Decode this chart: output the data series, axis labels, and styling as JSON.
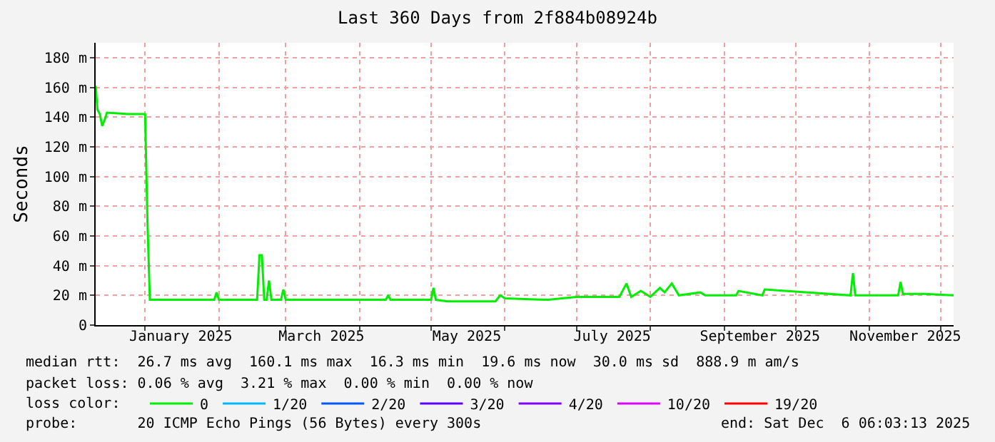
{
  "chart_data": {
    "type": "line",
    "title": "Last 360 Days from 2f884b08924b",
    "ylabel": "Seconds",
    "x": [
      "2024-12-11T06:00",
      "2024-12-12",
      "2024-12-13",
      "2024-12-14",
      "2024-12-15",
      "2024-12-16",
      "2024-12-25",
      "2025-01-01",
      "2025-01-02",
      "2025-01-03",
      "2025-01-15",
      "2025-01-30",
      "2025-01-31",
      "2025-02-01",
      "2025-02-17",
      "2025-02-18",
      "2025-02-19",
      "2025-02-20",
      "2025-02-21",
      "2025-02-22",
      "2025-02-23",
      "2025-02-27",
      "2025-02-28",
      "2025-03-01",
      "2025-03-20",
      "2025-04-12",
      "2025-04-13",
      "2025-04-14",
      "2025-05-01",
      "2025-05-02",
      "2025-05-03",
      "2025-05-08",
      "2025-05-28",
      "2025-05-30",
      "2025-06-01",
      "2025-06-19",
      "2025-07-01",
      "2025-07-19",
      "2025-07-22",
      "2025-07-24",
      "2025-07-28",
      "2025-08-01",
      "2025-08-05",
      "2025-08-07",
      "2025-08-10",
      "2025-08-13",
      "2025-08-22",
      "2025-08-24",
      "2025-09-06",
      "2025-09-07",
      "2025-09-17",
      "2025-09-18",
      "2025-10-24",
      "2025-10-25",
      "2025-10-26",
      "2025-11-13",
      "2025-11-14",
      "2025-11-15",
      "2025-11-24",
      "2025-12-06T06:00"
    ],
    "series": [
      {
        "name": "0",
        "color": "#00ee00",
        "values": [
          161,
          145,
          142,
          134,
          138,
          143,
          142,
          142,
          69,
          17,
          17,
          17,
          22,
          17,
          17,
          47,
          47,
          17,
          17,
          30,
          17,
          17,
          24,
          17,
          17,
          17,
          20,
          17,
          17,
          25,
          17,
          16,
          16,
          20,
          18,
          17,
          19,
          19,
          28,
          19,
          23,
          19,
          25,
          22,
          28,
          20,
          22,
          20,
          20,
          23,
          20,
          24,
          20,
          35,
          20,
          20,
          29,
          21,
          21,
          20
        ]
      },
      {
        "name": "1/20",
        "color": "#00b8ff",
        "values": [
          null,
          null,
          null,
          null,
          null,
          null,
          null,
          null,
          null,
          null,
          null,
          null,
          null,
          null,
          null,
          null,
          null,
          null,
          null,
          null,
          null,
          null,
          null,
          null,
          null,
          null,
          null,
          null,
          null,
          null,
          null,
          null,
          null,
          null,
          null,
          null,
          null,
          null,
          null,
          null,
          null,
          null,
          null,
          null,
          null,
          null,
          null,
          null,
          null,
          null,
          null,
          null,
          null,
          null,
          null,
          null,
          null,
          null,
          null,
          null
        ]
      },
      {
        "name": "2/20",
        "color": "#0059ff",
        "values": [
          null,
          null,
          null,
          null,
          null,
          null,
          null,
          null,
          null,
          null,
          null,
          null,
          null,
          null,
          null,
          null,
          null,
          null,
          null,
          null,
          null,
          null,
          null,
          null,
          null,
          null,
          null,
          null,
          null,
          null,
          null,
          null,
          null,
          null,
          null,
          null,
          null,
          null,
          null,
          null,
          null,
          null,
          null,
          null,
          null,
          null,
          null,
          null,
          null,
          null,
          null,
          null,
          null,
          null,
          null,
          null,
          null,
          null,
          null,
          null
        ]
      },
      {
        "name": "3/20",
        "color": "#5e00ff",
        "values": [
          null,
          null,
          null,
          null,
          null,
          null,
          null,
          null,
          null,
          null,
          null,
          null,
          null,
          null,
          null,
          null,
          null,
          null,
          null,
          null,
          null,
          null,
          null,
          null,
          null,
          null,
          null,
          null,
          null,
          null,
          null,
          null,
          null,
          null,
          null,
          null,
          null,
          null,
          null,
          null,
          null,
          null,
          null,
          null,
          null,
          null,
          null,
          null,
          null,
          null,
          null,
          null,
          null,
          null,
          null,
          null,
          null,
          null,
          null,
          null
        ]
      },
      {
        "name": "4/20",
        "color": "#7e00ff",
        "values": [
          null,
          null,
          null,
          null,
          null,
          null,
          null,
          null,
          null,
          null,
          null,
          null,
          null,
          null,
          null,
          null,
          null,
          null,
          null,
          null,
          null,
          null,
          null,
          null,
          null,
          null,
          null,
          null,
          null,
          null,
          null,
          null,
          null,
          null,
          null,
          null,
          null,
          null,
          null,
          null,
          null,
          null,
          null,
          null,
          null,
          null,
          null,
          null,
          null,
          null,
          null,
          null,
          null,
          null,
          null,
          null,
          null,
          null,
          null,
          null
        ]
      },
      {
        "name": "10/20",
        "color": "#dd00ff",
        "values": [
          null,
          null,
          null,
          null,
          null,
          null,
          null,
          null,
          null,
          null,
          null,
          null,
          null,
          null,
          null,
          null,
          null,
          null,
          null,
          null,
          null,
          null,
          null,
          null,
          null,
          null,
          null,
          null,
          null,
          null,
          null,
          null,
          null,
          null,
          null,
          null,
          null,
          null,
          null,
          null,
          null,
          null,
          null,
          null,
          null,
          null,
          null,
          null,
          null,
          null,
          null,
          null,
          null,
          null,
          null,
          null,
          null,
          null,
          null,
          null
        ]
      },
      {
        "name": "19/20",
        "color": "#ff0000",
        "values": [
          null,
          null,
          null,
          null,
          null,
          null,
          null,
          null,
          null,
          null,
          null,
          null,
          null,
          null,
          null,
          null,
          null,
          null,
          null,
          null,
          null,
          null,
          null,
          null,
          null,
          null,
          null,
          null,
          null,
          null,
          null,
          null,
          null,
          null,
          null,
          null,
          null,
          null,
          null,
          null,
          null,
          null,
          null,
          null,
          null,
          null,
          null,
          null,
          null,
          null,
          null,
          null,
          null,
          null,
          null,
          null,
          null,
          null,
          null,
          null
        ]
      }
    ],
    "xlim": [
      "2024-12-11T06:00",
      "2025-12-06T06:03"
    ],
    "xticks": [
      {
        "value": "2025-01-01",
        "label": null
      },
      {
        "value": "2025-01-16",
        "label": "January 2025"
      },
      {
        "value": "2025-02-01",
        "label": null
      },
      {
        "value": "2025-03-01",
        "label": null
      },
      {
        "value": "2025-03-16",
        "label": "March 2025"
      },
      {
        "value": "2025-04-01",
        "label": null
      },
      {
        "value": "2025-05-01",
        "label": null
      },
      {
        "value": "2025-05-16",
        "label": "May 2025"
      },
      {
        "value": "2025-06-01",
        "label": null
      },
      {
        "value": "2025-07-01",
        "label": null
      },
      {
        "value": "2025-07-16",
        "label": "July 2025"
      },
      {
        "value": "2025-08-01",
        "label": null
      },
      {
        "value": "2025-09-01",
        "label": null
      },
      {
        "value": "2025-09-16",
        "label": "September 2025"
      },
      {
        "value": "2025-10-01",
        "label": null
      },
      {
        "value": "2025-11-01",
        "label": null
      },
      {
        "value": "2025-11-16",
        "label": "November 2025"
      },
      {
        "value": "2025-12-01",
        "label": null
      }
    ],
    "ylim": [
      0,
      190
    ],
    "yticks": [
      0,
      {
        "value": 20,
        "label": "20 m"
      },
      {
        "value": 40,
        "label": "40 m"
      },
      {
        "value": 60,
        "label": "60 m"
      },
      {
        "value": 80,
        "label": "80 m"
      },
      {
        "value": 100,
        "label": "100 m"
      },
      {
        "value": 120,
        "label": "120 m"
      },
      {
        "value": 140,
        "label": "140 m"
      },
      {
        "value": 160,
        "label": "160 m"
      },
      {
        "value": 180,
        "label": "180 m"
      }
    ],
    "grid": true,
    "legend": "bottom",
    "marker": "none",
    "line_style": "solid",
    "annotations": [
      "median rtt:  26.7 ms avg  160.1 ms max  16.3 ms min  19.6 ms now  30.0 ms sd  888.9 m am/s",
      "packet loss: 0.06 % avg  3.21 % max  0.00 % min  0.00 % now",
      "loss color:",
      "probe:       20 ICMP Echo Pings (56 Bytes) every 300s",
      "end: Sat Dec  6 06:03:13 2025"
    ]
  }
}
